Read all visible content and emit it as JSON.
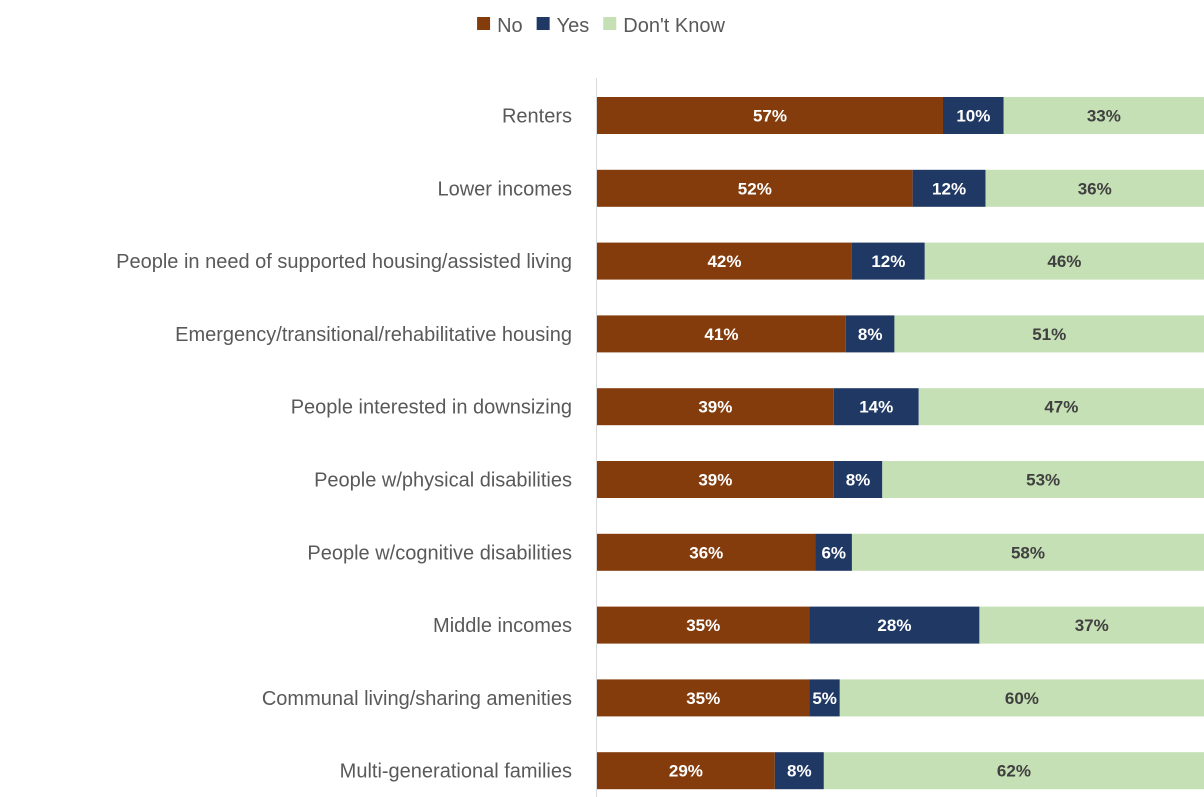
{
  "chart_data": {
    "type": "bar",
    "orientation": "horizontal",
    "stacked": "100%",
    "categories": [
      "Renters",
      "Lower incomes",
      "People in need of supported housing/assisted living",
      "Emergency/transitional/rehabilitative housing",
      "People interested in downsizing",
      "People w/physical disabilities",
      "People w/cognitive disabilities",
      "Middle incomes",
      "Communal living/sharing amenities",
      "Multi-generational families"
    ],
    "series": [
      {
        "name": "No",
        "color": "#843c0c",
        "label_color": "#ffffff",
        "values": [
          57,
          52,
          42,
          41,
          39,
          39,
          36,
          35,
          35,
          29
        ],
        "labels": [
          "57%",
          "52%",
          "42%",
          "41%",
          "39%",
          "39%",
          "36%",
          "35%",
          "35%",
          "29%"
        ]
      },
      {
        "name": "Yes",
        "color": "#203864",
        "label_color": "#ffffff",
        "values": [
          10,
          12,
          12,
          8,
          14,
          8,
          6,
          28,
          5,
          8
        ],
        "labels": [
          "10%",
          "12%",
          "12%",
          "8%",
          "14%",
          "8%",
          "6%",
          "28%",
          "5%",
          "8%"
        ]
      },
      {
        "name": "Don't Know",
        "color": "#c5e0b4",
        "label_color": "#404040",
        "values": [
          33,
          36,
          46,
          51,
          47,
          53,
          58,
          37,
          60,
          62
        ],
        "labels": [
          "33%",
          "36%",
          "46%",
          "51%",
          "47%",
          "53%",
          "58%",
          "37%",
          "60%",
          "62%"
        ]
      }
    ],
    "xlim": [
      0,
      100
    ],
    "legend_position": "top",
    "grid": false
  }
}
